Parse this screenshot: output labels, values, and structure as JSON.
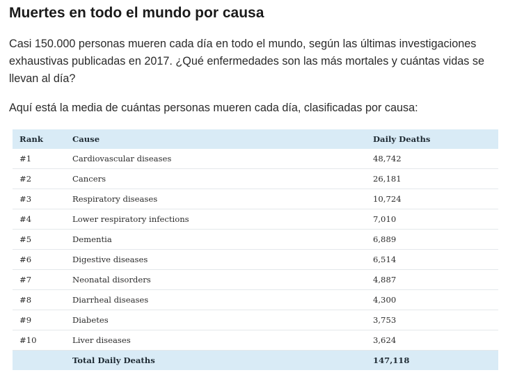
{
  "article": {
    "title": "Muertes en todo el mundo por causa",
    "intro": "Casi 150.000 personas mueren cada día en todo el mundo, según las últimas investigaciones exhaustivas publicadas en 2017. ¿Qué enfermedades son las más mortales y cuántas vidas se llevan al día?",
    "lead": "Aquí está la media de cuántas personas mueren cada día, clasificadas por causa:"
  },
  "table": {
    "headers": {
      "rank": "Rank",
      "cause": "Cause",
      "deaths": "Daily Deaths"
    },
    "rows": [
      {
        "rank": "#1",
        "cause": "Cardiovascular diseases",
        "deaths": "48,742"
      },
      {
        "rank": "#2",
        "cause": "Cancers",
        "deaths": "26,181"
      },
      {
        "rank": "#3",
        "cause": "Respiratory diseases",
        "deaths": "10,724"
      },
      {
        "rank": "#4",
        "cause": "Lower respiratory infections",
        "deaths": "7,010"
      },
      {
        "rank": "#5",
        "cause": "Dementia",
        "deaths": "6,889"
      },
      {
        "rank": "#6",
        "cause": "Digestive diseases",
        "deaths": "6,514"
      },
      {
        "rank": "#7",
        "cause": "Neonatal disorders",
        "deaths": "4,887"
      },
      {
        "rank": "#8",
        "cause": "Diarrheal diseases",
        "deaths": "4,300"
      },
      {
        "rank": "#9",
        "cause": "Diabetes",
        "deaths": "3,753"
      },
      {
        "rank": "#10",
        "cause": "Liver diseases",
        "deaths": "3,624"
      }
    ],
    "total": {
      "label": "Total Daily Deaths",
      "value": "147,118"
    }
  },
  "colors": {
    "header_background": "#d9ebf6",
    "row_divider": "#e4e8eb"
  }
}
